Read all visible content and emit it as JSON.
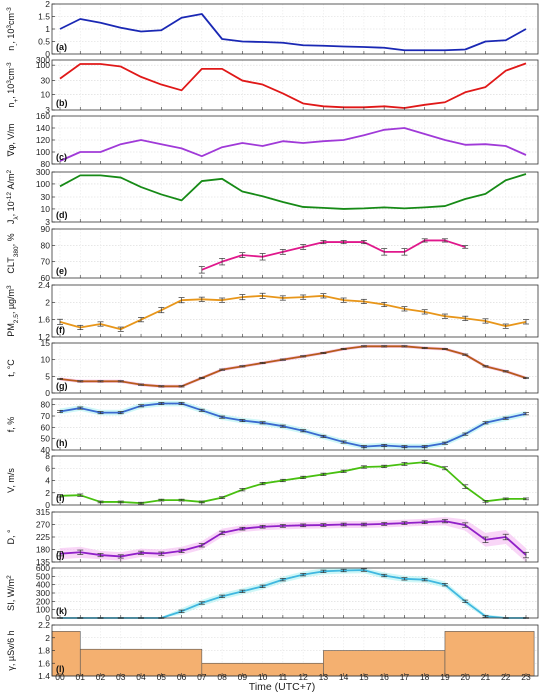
{
  "figure": {
    "xlabel": "Time (UTC+7)",
    "hours": [
      "00",
      "01",
      "02",
      "03",
      "04",
      "05",
      "06",
      "07",
      "08",
      "09",
      "10",
      "11",
      "12",
      "13",
      "14",
      "15",
      "16",
      "17",
      "18",
      "19",
      "20",
      "21",
      "22",
      "23"
    ]
  },
  "chart_data": [
    {
      "id": "a",
      "type": "line",
      "panel_label": "(a)",
      "ylabel": "n_- 10^3 cm^-3",
      "ylabel_parts": {
        "base": "n",
        "sub": "-",
        "mid": ", 10",
        "sup": "3",
        "mid2": "cm",
        "sup2": "-3"
      },
      "yscale": "linear",
      "ylim": [
        0,
        2
      ],
      "yticks": [
        0,
        0.5,
        1,
        1.5,
        2
      ],
      "ytick_labels": [
        "0",
        "0.5",
        "1",
        "1.5",
        "2"
      ],
      "color": "#1a28b4",
      "grid": true,
      "error_bars": false,
      "x": [
        0,
        1,
        2,
        3,
        4,
        5,
        6,
        7,
        8,
        9,
        10,
        11,
        12,
        13,
        14,
        15,
        16,
        17,
        18,
        19,
        20,
        21,
        22,
        23
      ],
      "y": [
        1.0,
        1.4,
        1.25,
        1.05,
        0.9,
        0.95,
        1.45,
        1.6,
        0.6,
        0.5,
        0.48,
        0.45,
        0.35,
        0.33,
        0.3,
        0.28,
        0.25,
        0.15,
        0.15,
        0.15,
        0.18,
        0.5,
        0.55,
        1.0
      ]
    },
    {
      "id": "b",
      "type": "line",
      "panel_label": "(b)",
      "ylabel_parts": {
        "base": "n",
        "sub": "+",
        "mid": ", 10",
        "sup": "3",
        "mid2": "cm",
        "sup2": "-3"
      },
      "yscale": "log",
      "ylim": [
        3,
        150
      ],
      "yticks": [
        3,
        10,
        30,
        100
      ],
      "ytick_labels": [
        "3",
        "10",
        "30",
        "100"
      ],
      "extra_top_tick": "300",
      "color": "#e01818",
      "grid": true,
      "error_bars": false,
      "x": [
        0,
        1,
        2,
        3,
        4,
        5,
        6,
        7,
        8,
        9,
        10,
        11,
        12,
        13,
        14,
        15,
        16,
        17,
        18,
        19,
        20,
        21,
        22,
        23
      ],
      "y": [
        35,
        110,
        110,
        90,
        40,
        22,
        14,
        75,
        75,
        30,
        22,
        11,
        5,
        4,
        3.7,
        3.7,
        4,
        3.5,
        4.5,
        5.5,
        12,
        18,
        65,
        115
      ]
    },
    {
      "id": "c",
      "type": "line",
      "panel_label": "(c)",
      "ylabel_parts": {
        "base": "∇φ",
        "sub": "",
        "mid": ", V/m",
        "sup": "",
        "mid2": "",
        "sup2": ""
      },
      "yscale": "linear",
      "ylim": [
        80,
        160
      ],
      "yticks": [
        80,
        100,
        120,
        140,
        160
      ],
      "ytick_labels": [
        "80",
        "100",
        "120",
        "140",
        "160"
      ],
      "color": "#a03ad8",
      "grid": true,
      "error_bars": false,
      "x": [
        0,
        1,
        2,
        3,
        4,
        5,
        6,
        7,
        8,
        9,
        10,
        11,
        12,
        13,
        14,
        15,
        16,
        17,
        18,
        19,
        20,
        21,
        22,
        23
      ],
      "y": [
        85,
        100,
        100,
        113,
        120,
        113,
        106,
        93,
        108,
        115,
        110,
        118,
        115,
        118,
        120,
        128,
        137,
        140,
        130,
        120,
        112,
        113,
        110,
        95
      ]
    },
    {
      "id": "d",
      "type": "line",
      "panel_label": "(d)",
      "ylabel_parts": {
        "base": "J",
        "sub": "λ",
        "mid": ", 10",
        "sup": "-12",
        "mid2": " A/m",
        "sup2": "2"
      },
      "yscale": "log",
      "ylim": [
        3,
        300
      ],
      "yticks": [
        3,
        10,
        30,
        100,
        300
      ],
      "ytick_labels": [
        "3",
        "10",
        "30",
        "100",
        "300"
      ],
      "color": "#168a16",
      "grid": true,
      "error_bars": false,
      "x": [
        0,
        1,
        2,
        3,
        4,
        5,
        6,
        7,
        8,
        9,
        10,
        11,
        12,
        13,
        14,
        15,
        16,
        17,
        18,
        19,
        20,
        21,
        22,
        23
      ],
      "y": [
        80,
        220,
        220,
        180,
        75,
        38,
        22,
        130,
        160,
        50,
        32,
        19,
        12,
        11,
        10,
        10.5,
        11.5,
        10.5,
        11.5,
        13,
        25,
        40,
        140,
        250
      ]
    },
    {
      "id": "e",
      "type": "line",
      "panel_label": "(e)",
      "ylabel_parts": {
        "base": "CLT",
        "sub": "380",
        "mid": ", %",
        "sup": "",
        "mid2": "",
        "sup2": ""
      },
      "yscale": "linear",
      "ylim": [
        60,
        90
      ],
      "yticks": [
        60,
        70,
        80,
        90
      ],
      "ytick_labels": [
        "60",
        "70",
        "80",
        "90"
      ],
      "color": "#e0188c",
      "grid": true,
      "error_bars": true,
      "x": [
        7,
        8,
        9,
        10,
        11,
        12,
        13,
        14,
        15,
        16,
        17,
        18,
        19,
        20
      ],
      "y": [
        65,
        70,
        74,
        73,
        76,
        79,
        82,
        82,
        82,
        76,
        76,
        83,
        83,
        79
      ],
      "err": [
        2,
        2,
        1.5,
        2,
        1.5,
        1.5,
        1,
        1,
        1,
        2,
        2,
        1,
        1,
        0.8
      ]
    },
    {
      "id": "f",
      "type": "line",
      "panel_label": "(f)",
      "ylabel_parts": {
        "base": "PM",
        "sub": "2.5",
        "mid": ", µg/m",
        "sup": "3",
        "mid2": "",
        "sup2": ""
      },
      "yscale": "linear",
      "ylim": [
        1.2,
        2.4
      ],
      "yticks": [
        1.2,
        1.6,
        2,
        2.4
      ],
      "ytick_labels": [
        "1.2",
        "1.6",
        "2",
        "2.4"
      ],
      "color": "#e8961a",
      "grid": true,
      "error_bars": true,
      "x": [
        0,
        1,
        2,
        3,
        4,
        5,
        6,
        7,
        8,
        9,
        10,
        11,
        12,
        13,
        14,
        15,
        16,
        17,
        18,
        19,
        20,
        21,
        22,
        23
      ],
      "y": [
        1.55,
        1.42,
        1.5,
        1.38,
        1.6,
        1.82,
        2.05,
        2.07,
        2.05,
        2.12,
        2.15,
        2.1,
        2.12,
        2.15,
        2.05,
        2.02,
        1.95,
        1.85,
        1.78,
        1.68,
        1.63,
        1.57,
        1.45,
        1.55
      ],
      "err": [
        0.06,
        0.05,
        0.05,
        0.05,
        0.05,
        0.06,
        0.06,
        0.05,
        0.05,
        0.06,
        0.06,
        0.05,
        0.05,
        0.05,
        0.05,
        0.05,
        0.05,
        0.05,
        0.05,
        0.05,
        0.05,
        0.05,
        0.05,
        0.05
      ]
    },
    {
      "id": "g",
      "type": "line",
      "panel_label": "(g)",
      "ylabel_parts": {
        "base": "t, °C",
        "sub": "",
        "mid": "",
        "sup": "",
        "mid2": "",
        "sup2": ""
      },
      "yscale": "linear",
      "ylim": [
        0,
        15
      ],
      "yticks": [
        0,
        5,
        10,
        15
      ],
      "ytick_labels": [
        "0",
        "5",
        "10",
        "15"
      ],
      "color": "#b85a1c",
      "band_color": "#f4a8dc",
      "grid": true,
      "error_bars": true,
      "x": [
        0,
        1,
        2,
        3,
        4,
        5,
        6,
        7,
        8,
        9,
        10,
        11,
        12,
        13,
        14,
        15,
        16,
        17,
        18,
        19,
        20,
        21,
        22,
        23
      ],
      "y": [
        4.2,
        3.5,
        3.5,
        3.5,
        2.5,
        2,
        2,
        4.5,
        7,
        8,
        9,
        10,
        11,
        12,
        13.2,
        14,
        14,
        14,
        13.5,
        13.2,
        11.5,
        8,
        6.5,
        4.5
      ],
      "err": [
        0.2,
        0.2,
        0.2,
        0.2,
        0.2,
        0.2,
        0.2,
        0.2,
        0.2,
        0.2,
        0.2,
        0.2,
        0.2,
        0.2,
        0.2,
        0.2,
        0.2,
        0.2,
        0.2,
        0.2,
        0.2,
        0.2,
        0.2,
        0.2
      ]
    },
    {
      "id": "h",
      "type": "line",
      "panel_label": "(h)",
      "ylabel_parts": {
        "base": "f, %",
        "sub": "",
        "mid": "",
        "sup": "",
        "mid2": "",
        "sup2": ""
      },
      "yscale": "linear",
      "ylim": [
        40,
        85
      ],
      "yticks": [
        40,
        50,
        60,
        70,
        80
      ],
      "ytick_labels": [
        "40",
        "50",
        "60",
        "70",
        "80"
      ],
      "color": "#3a6ad0",
      "band_color": "#a8f0f0",
      "grid": true,
      "error_bars": true,
      "x": [
        0,
        1,
        2,
        3,
        4,
        5,
        6,
        7,
        8,
        9,
        10,
        11,
        12,
        13,
        14,
        15,
        16,
        17,
        18,
        19,
        20,
        21,
        22,
        23
      ],
      "y": [
        74,
        77,
        73,
        73,
        79,
        81,
        81,
        75,
        69,
        66,
        64,
        61,
        57,
        52,
        47,
        43,
        44,
        43,
        43,
        46,
        54,
        64,
        68,
        72
      ],
      "err": [
        1,
        1,
        1,
        1,
        1,
        1,
        1,
        1,
        1,
        1,
        1,
        1,
        1,
        1,
        1,
        1,
        1,
        1,
        1,
        1,
        1,
        1,
        1,
        1
      ]
    },
    {
      "id": "i",
      "type": "line",
      "panel_label": "(i)",
      "ylabel_parts": {
        "base": "V, m/s",
        "sub": "",
        "mid": "",
        "sup": "",
        "mid2": "",
        "sup2": ""
      },
      "yscale": "linear",
      "ylim": [
        0,
        8
      ],
      "yticks": [
        0,
        2,
        4,
        6,
        8
      ],
      "ytick_labels": [
        "0",
        "2",
        "4",
        "6",
        "8"
      ],
      "color": "#48c010",
      "grid": true,
      "error_bars": true,
      "x": [
        0,
        1,
        2,
        3,
        4,
        5,
        6,
        7,
        8,
        9,
        10,
        11,
        12,
        13,
        14,
        15,
        16,
        17,
        18,
        19,
        20,
        21,
        22,
        23
      ],
      "y": [
        1.5,
        1.6,
        0.5,
        0.5,
        0.3,
        0.8,
        0.8,
        0.5,
        1.2,
        2.5,
        3.5,
        4.0,
        4.5,
        5.0,
        5.5,
        6.2,
        6.3,
        6.7,
        7.0,
        6.0,
        3.0,
        0.6,
        1.0,
        1.0
      ],
      "err": [
        0.2,
        0.2,
        0.15,
        0.15,
        0.15,
        0.15,
        0.15,
        0.15,
        0.15,
        0.2,
        0.2,
        0.2,
        0.2,
        0.2,
        0.2,
        0.2,
        0.2,
        0.25,
        0.25,
        0.25,
        0.3,
        0.15,
        0.15,
        0.15
      ]
    },
    {
      "id": "j",
      "type": "line",
      "panel_label": "(j)",
      "ylabel_parts": {
        "base": "D, °",
        "sub": "",
        "mid": "",
        "sup": "",
        "mid2": "",
        "sup2": ""
      },
      "yscale": "linear",
      "ylim": [
        135,
        315
      ],
      "yticks": [
        135,
        180,
        225,
        270,
        315
      ],
      "ytick_labels": [
        "135",
        "180",
        "225",
        "270",
        "315"
      ],
      "color": "#9020c8",
      "band_color": "#f4b4f0",
      "grid": true,
      "error_bars": true,
      "x": [
        0,
        1,
        2,
        3,
        4,
        5,
        6,
        7,
        8,
        9,
        10,
        11,
        12,
        13,
        14,
        15,
        16,
        17,
        18,
        19,
        20,
        21,
        22,
        23
      ],
      "y": [
        165,
        170,
        160,
        155,
        168,
        165,
        175,
        195,
        240,
        255,
        262,
        265,
        267,
        268,
        270,
        270,
        272,
        275,
        278,
        282,
        268,
        215,
        225,
        160
      ],
      "err": [
        8,
        8,
        6,
        6,
        6,
        6,
        6,
        6,
        6,
        5,
        5,
        5,
        5,
        5,
        5,
        5,
        5,
        5,
        5,
        6,
        8,
        10,
        10,
        10
      ]
    },
    {
      "id": "k",
      "type": "line",
      "panel_label": "(k)",
      "ylabel_parts": {
        "base": "SI, W/m",
        "sub": "",
        "mid": "",
        "sup": "2",
        "mid2": "",
        "sup2": ""
      },
      "yscale": "linear",
      "ylim": [
        0,
        600
      ],
      "yticks": [
        0,
        100,
        200,
        300,
        400,
        500,
        600
      ],
      "ytick_labels": [
        "0",
        "100",
        "200",
        "300",
        "400",
        "500",
        "600"
      ],
      "color": "#40b8e0",
      "band_color": "#a8f0f0",
      "grid": true,
      "error_bars": true,
      "x": [
        0,
        1,
        2,
        3,
        4,
        5,
        6,
        7,
        8,
        9,
        10,
        11,
        12,
        13,
        14,
        15,
        16,
        17,
        18,
        19,
        20,
        21,
        22,
        23
      ],
      "y": [
        0,
        0,
        0,
        0,
        0,
        0,
        80,
        180,
        260,
        320,
        380,
        460,
        520,
        560,
        570,
        575,
        510,
        470,
        460,
        400,
        200,
        20,
        0,
        0
      ],
      "err": [
        5,
        5,
        5,
        5,
        5,
        5,
        15,
        15,
        15,
        15,
        15,
        15,
        15,
        15,
        15,
        15,
        15,
        15,
        15,
        15,
        15,
        10,
        5,
        5
      ]
    },
    {
      "id": "l",
      "type": "area",
      "panel_label": "(l)",
      "ylabel_parts": {
        "base": "γ, µSv/6 h",
        "sub": "",
        "mid": "",
        "sup": "",
        "mid2": "",
        "sup2": ""
      },
      "yscale": "linear",
      "ylim": [
        1.4,
        2.2
      ],
      "yticks": [
        1.4,
        1.6,
        1.8,
        2,
        2.2
      ],
      "ytick_labels": [
        "1.4",
        "1.6",
        "1.8",
        "2",
        "2.2"
      ],
      "color": "#f4b070",
      "grid": true,
      "error_bars": false,
      "step_ranges": [
        [
          0,
          1,
          2.1
        ],
        [
          1,
          7,
          1.82
        ],
        [
          7,
          13,
          1.6
        ],
        [
          13,
          19,
          1.8
        ],
        [
          19,
          23.4,
          2.1
        ]
      ]
    }
  ]
}
